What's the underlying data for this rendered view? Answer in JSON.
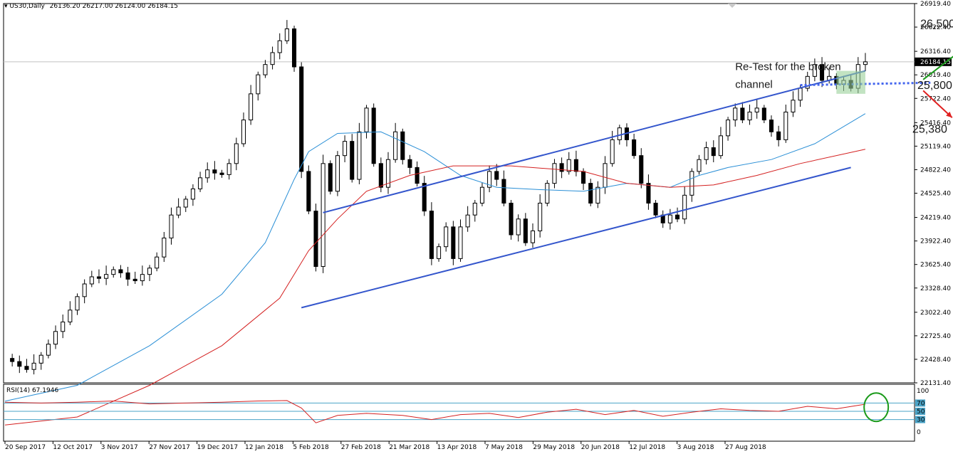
{
  "header": {
    "symbol": "US30,Daily",
    "ohlc": "26136.20 26217.00 26124.00 26184.15"
  },
  "chart_data": {
    "type": "line",
    "price_axis": {
      "ticks": [
        "26919.40",
        "26622.40",
        "26316.40",
        "26019.40",
        "25722.40",
        "25416.40",
        "25119.40",
        "24822.40",
        "24525.40",
        "24219.40",
        "23922.40",
        "23625.40",
        "23328.40",
        "23022.40",
        "22725.40",
        "22428.40",
        "22131.40"
      ],
      "ylim": [
        22131.4,
        26919.4
      ],
      "current_price_label": "26184.15",
      "current_price": 26184.15
    },
    "date_axis": {
      "ticks": [
        "20 Sep 2017",
        "12 Oct 2017",
        "3 Nov 2017",
        "27 Nov 2017",
        "19 Dec 2017",
        "12 Jan 2018",
        "5 Feb 2018",
        "27 Feb 2018",
        "21 Mar 2018",
        "13 Apr 2018",
        "7 May 2018",
        "29 May 2018",
        "20 Jun 2018",
        "12 Jul 2018",
        "3 Aug 2018",
        "27 Aug 2018"
      ]
    },
    "price_path": [
      [
        0,
        22440
      ],
      [
        1,
        22400
      ],
      [
        2,
        22340
      ],
      [
        3,
        22300
      ],
      [
        4,
        22380
      ],
      [
        5,
        22480
      ],
      [
        6,
        22620
      ],
      [
        7,
        22780
      ],
      [
        8,
        22900
      ],
      [
        9,
        23050
      ],
      [
        10,
        23220
      ],
      [
        11,
        23380
      ],
      [
        12,
        23470
      ],
      [
        13,
        23450
      ],
      [
        14,
        23500
      ],
      [
        15,
        23560
      ],
      [
        16,
        23520
      ],
      [
        17,
        23440
      ],
      [
        18,
        23420
      ],
      [
        19,
        23500
      ],
      [
        20,
        23580
      ],
      [
        21,
        23720
      ],
      [
        22,
        23960
      ],
      [
        23,
        24250
      ],
      [
        24,
        24350
      ],
      [
        25,
        24450
      ],
      [
        26,
        24580
      ],
      [
        27,
        24720
      ],
      [
        28,
        24820
      ],
      [
        29,
        24780
      ],
      [
        30,
        24760
      ],
      [
        31,
        24900
      ],
      [
        32,
        25150
      ],
      [
        33,
        25450
      ],
      [
        34,
        25780
      ],
      [
        35,
        26020
      ],
      [
        36,
        26150
      ],
      [
        37,
        26300
      ],
      [
        38,
        26450
      ],
      [
        39,
        26600
      ],
      [
        40,
        26120
      ],
      [
        41,
        24800
      ],
      [
        42,
        24300
      ],
      [
        43,
        23600
      ],
      [
        44,
        24900
      ],
      [
        45,
        24550
      ],
      [
        46,
        25000
      ],
      [
        47,
        25180
      ],
      [
        48,
        24700
      ],
      [
        49,
        25300
      ],
      [
        50,
        25600
      ],
      [
        51,
        24900
      ],
      [
        52,
        24600
      ],
      [
        53,
        24950
      ],
      [
        54,
        25300
      ],
      [
        55,
        24950
      ],
      [
        56,
        24850
      ],
      [
        57,
        24650
      ],
      [
        58,
        24300
      ],
      [
        59,
        23700
      ],
      [
        60,
        23850
      ],
      [
        61,
        24100
      ],
      [
        62,
        23700
      ],
      [
        63,
        24100
      ],
      [
        64,
        24250
      ],
      [
        65,
        24400
      ],
      [
        66,
        24600
      ],
      [
        67,
        24800
      ],
      [
        68,
        24700
      ],
      [
        69,
        24400
      ],
      [
        70,
        24000
      ],
      [
        71,
        24200
      ],
      [
        72,
        23900
      ],
      [
        73,
        24050
      ],
      [
        74,
        24400
      ],
      [
        75,
        24650
      ],
      [
        76,
        24900
      ],
      [
        77,
        24800
      ],
      [
        78,
        24950
      ],
      [
        79,
        24800
      ],
      [
        80,
        24650
      ],
      [
        81,
        24400
      ],
      [
        82,
        24600
      ],
      [
        83,
        24900
      ],
      [
        84,
        25200
      ],
      [
        85,
        25350
      ],
      [
        86,
        25200
      ],
      [
        87,
        25000
      ],
      [
        88,
        24650
      ],
      [
        89,
        24400
      ],
      [
        90,
        24250
      ],
      [
        91,
        24150
      ],
      [
        92,
        24250
      ],
      [
        93,
        24200
      ],
      [
        94,
        24500
      ],
      [
        95,
        24800
      ],
      [
        96,
        24950
      ],
      [
        97,
        25100
      ],
      [
        98,
        25000
      ],
      [
        99,
        25250
      ],
      [
        100,
        25450
      ],
      [
        101,
        25600
      ],
      [
        102,
        25450
      ],
      [
        103,
        25550
      ],
      [
        104,
        25600
      ],
      [
        105,
        25450
      ],
      [
        106,
        25300
      ],
      [
        107,
        25200
      ],
      [
        108,
        25550
      ],
      [
        109,
        25700
      ],
      [
        110,
        25850
      ],
      [
        111,
        26000
      ],
      [
        112,
        26150
      ],
      [
        113,
        25950
      ],
      [
        114,
        26000
      ],
      [
        115,
        25900
      ],
      [
        116,
        25950
      ],
      [
        117,
        25850
      ],
      [
        118,
        26150
      ],
      [
        119,
        26184
      ]
    ],
    "ma_blue": [
      [
        0,
        21900
      ],
      [
        10,
        22100
      ],
      [
        20,
        22600
      ],
      [
        30,
        23250
      ],
      [
        36,
        23900
      ],
      [
        40,
        24700
      ],
      [
        42,
        25050
      ],
      [
        46,
        25280
      ],
      [
        52,
        25300
      ],
      [
        58,
        25050
      ],
      [
        63,
        24750
      ],
      [
        68,
        24600
      ],
      [
        74,
        24570
      ],
      [
        80,
        24550
      ],
      [
        86,
        24650
      ],
      [
        92,
        24600
      ],
      [
        96,
        24750
      ],
      [
        100,
        24850
      ],
      [
        106,
        24950
      ],
      [
        112,
        25150
      ],
      [
        119,
        25530
      ]
    ],
    "ma_red": [
      [
        0,
        21600
      ],
      [
        10,
        21700
      ],
      [
        20,
        22100
      ],
      [
        30,
        22600
      ],
      [
        38,
        23200
      ],
      [
        42,
        23800
      ],
      [
        46,
        24200
      ],
      [
        50,
        24550
      ],
      [
        56,
        24750
      ],
      [
        62,
        24870
      ],
      [
        70,
        24870
      ],
      [
        80,
        24800
      ],
      [
        86,
        24650
      ],
      [
        92,
        24600
      ],
      [
        98,
        24630
      ],
      [
        104,
        24750
      ],
      [
        110,
        24900
      ],
      [
        119,
        25080
      ]
    ],
    "channel_lower": [
      [
        41,
        23080
      ],
      [
        117,
        24850
      ]
    ],
    "channel_upper": [
      [
        44,
        24280
      ],
      [
        119,
        26070
      ]
    ],
    "retest_line": [
      [
        110,
        25890
      ],
      [
        128,
        25920
      ]
    ],
    "arrow_up": [
      [
        127,
        25960
      ],
      [
        132,
        26310
      ]
    ],
    "arrow_down": [
      [
        127,
        25820
      ],
      [
        131,
        25480
      ]
    ],
    "annotations": {
      "retest_line1": "Re-Test for the broken",
      "retest_line2": "channel",
      "target_up": "26,500",
      "pivot": "25,800",
      "target_down": "25,380"
    },
    "rsi": {
      "label": "RSI(14) 67.1946",
      "ticks": [
        "100",
        "70",
        "50",
        "30",
        "0"
      ],
      "levels": [
        70,
        50,
        30
      ],
      "values": [
        [
          0,
          72
        ],
        [
          5,
          70
        ],
        [
          10,
          72
        ],
        [
          15,
          75
        ],
        [
          20,
          68
        ],
        [
          25,
          70
        ],
        [
          30,
          72
        ],
        [
          35,
          75
        ],
        [
          39,
          76
        ],
        [
          41,
          58
        ],
        [
          43,
          22
        ],
        [
          46,
          40
        ],
        [
          50,
          45
        ],
        [
          55,
          40
        ],
        [
          59,
          30
        ],
        [
          63,
          42
        ],
        [
          67,
          45
        ],
        [
          71,
          35
        ],
        [
          75,
          48
        ],
        [
          79,
          55
        ],
        [
          83,
          42
        ],
        [
          87,
          52
        ],
        [
          91,
          38
        ],
        [
          95,
          48
        ],
        [
          99,
          56
        ],
        [
          103,
          52
        ],
        [
          107,
          50
        ],
        [
          111,
          62
        ],
        [
          115,
          56
        ],
        [
          119,
          67.19
        ]
      ]
    },
    "colors": {
      "candle": "#000000",
      "ma_blue": "#2a8fd6",
      "ma_red": "#d42020",
      "channel": "#3355cc",
      "retest": "#4466ee",
      "arrow_up": "#1a9a1a",
      "arrow_down": "#e02020",
      "rsi_line": "#d42020",
      "rsi_level": "#4aa3c7",
      "circle": "#1a9a1a"
    }
  }
}
